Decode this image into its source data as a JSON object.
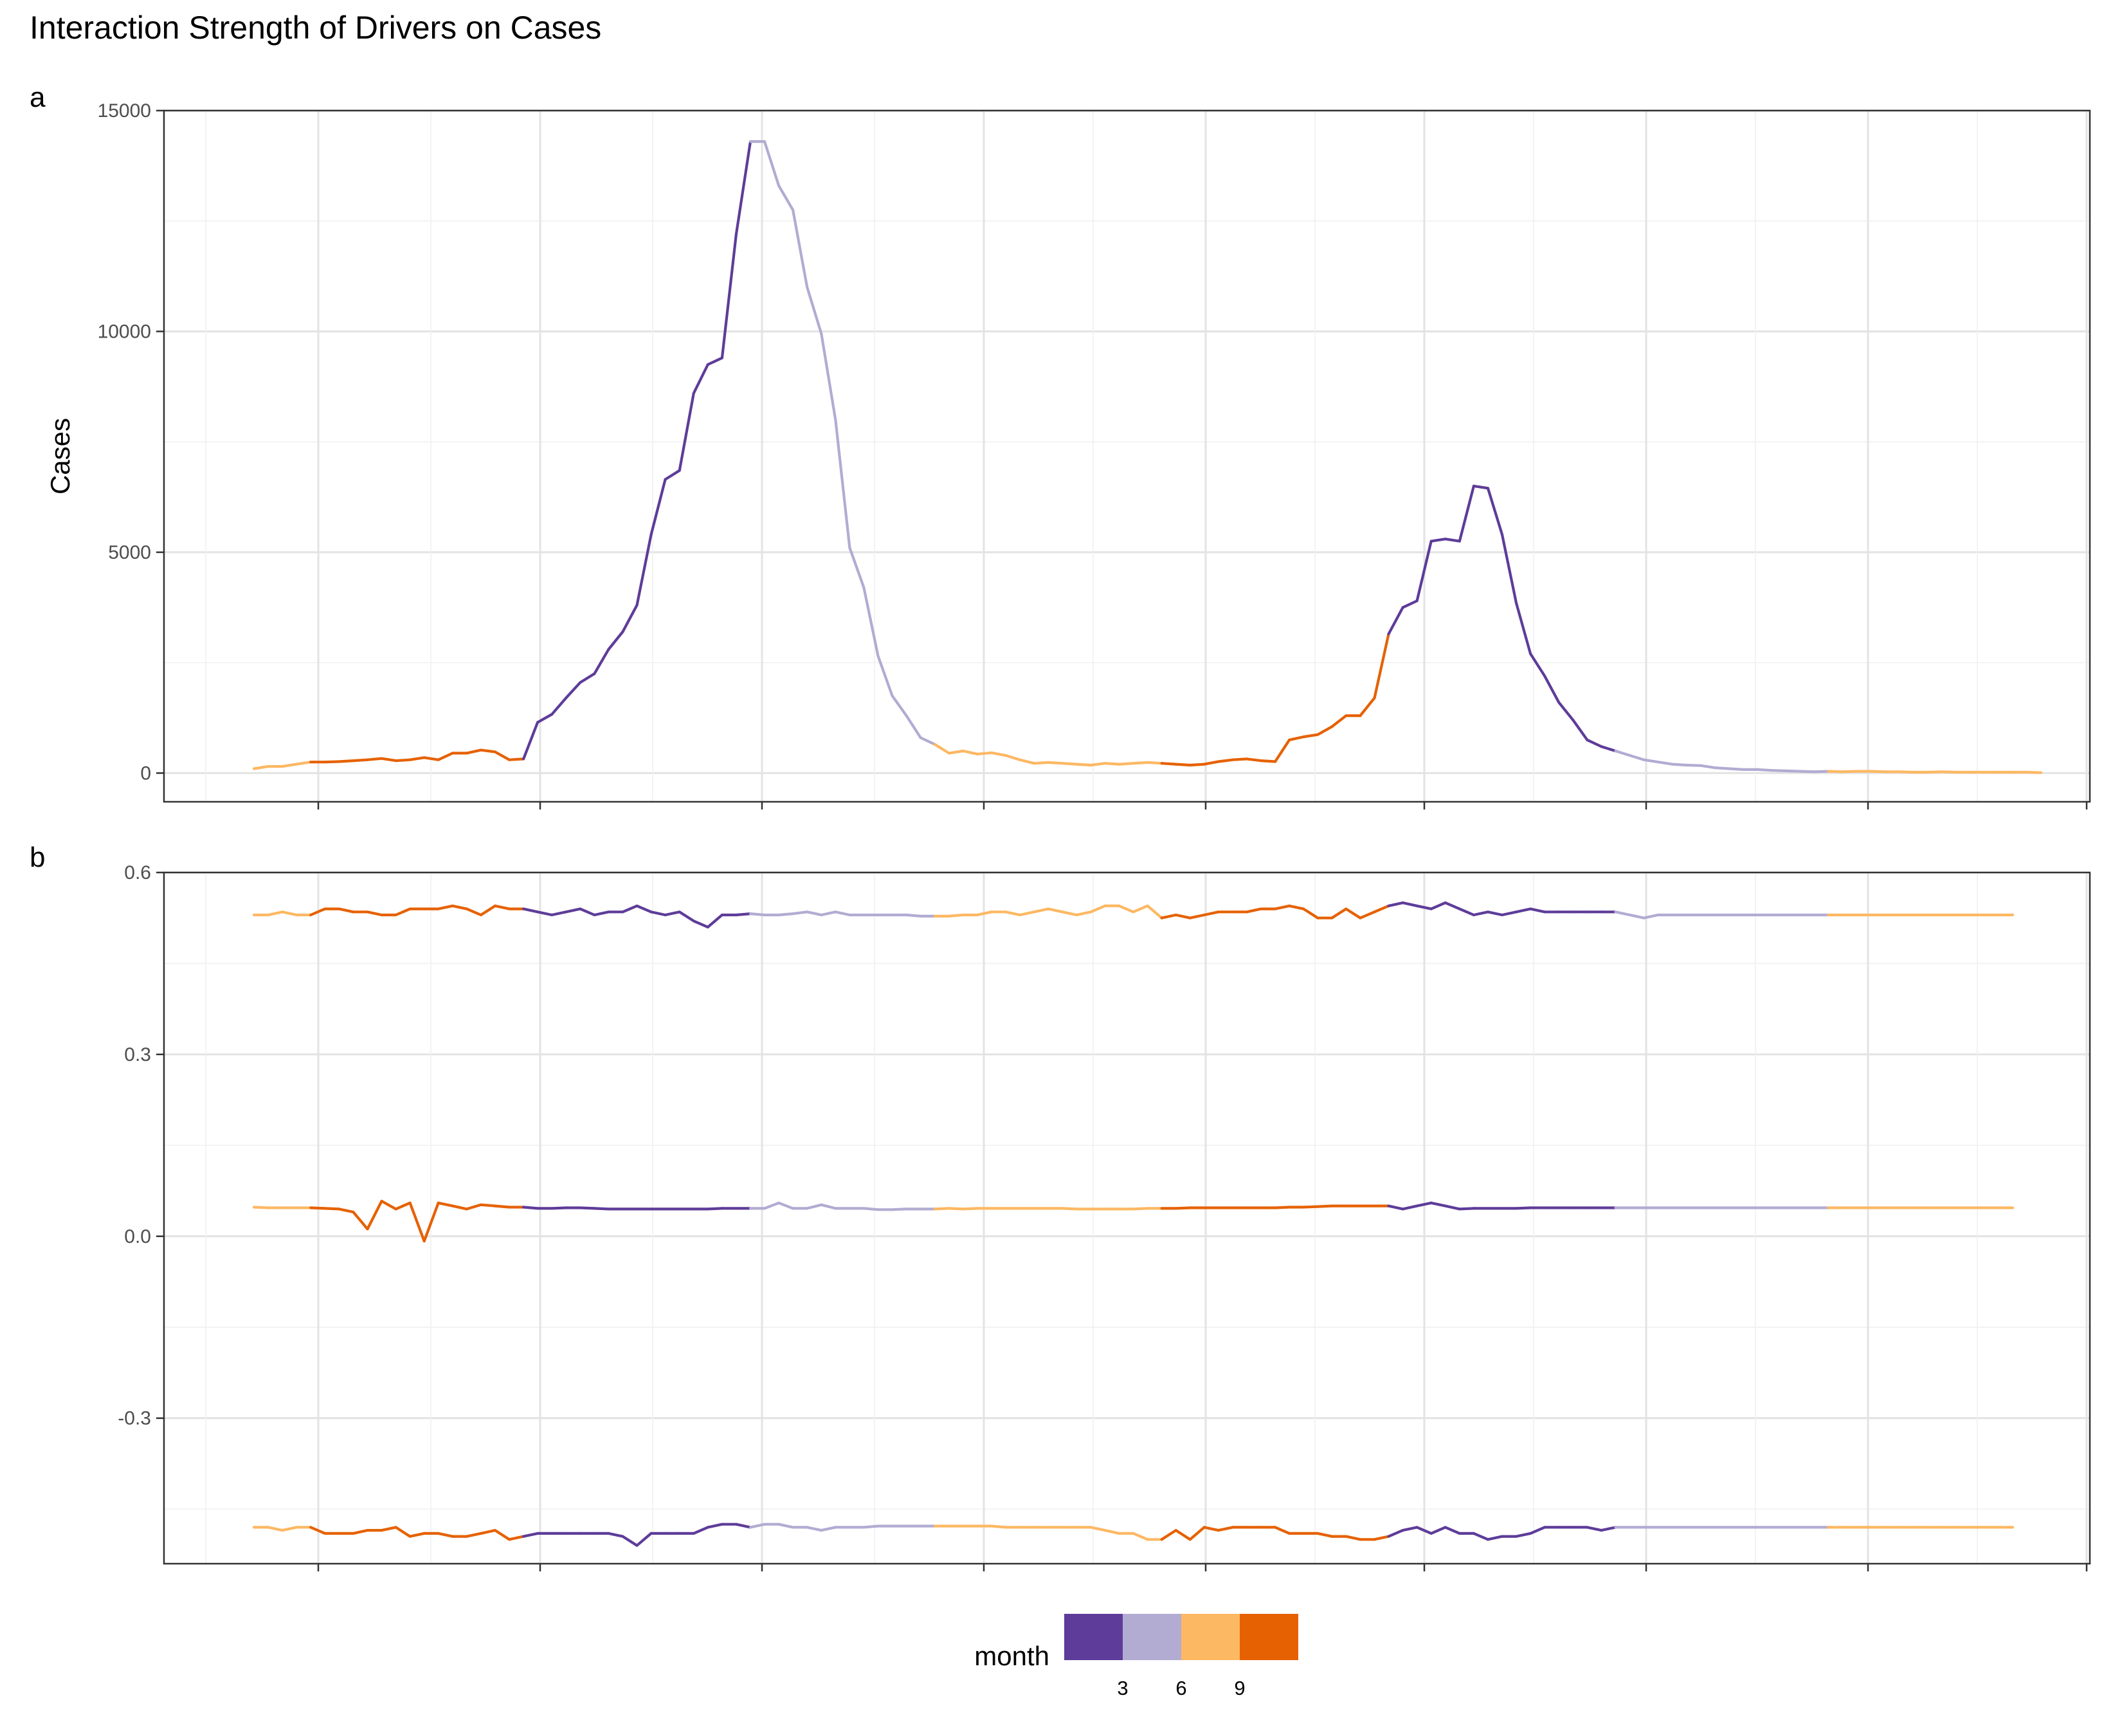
{
  "title": "Interaction Strength of Drivers on Cases",
  "colors": {
    "m3": "#5e3c99",
    "m6": "#b2abd2",
    "m9": "#fdb863",
    "m12": "#e66101"
  },
  "legend": {
    "title": "month",
    "ticks": [
      "3",
      "6",
      "9"
    ]
  },
  "chart_data": [
    {
      "type": "line",
      "panel_tag": "a",
      "xlabel": "",
      "ylabel": "Cases",
      "ylim": [
        -650,
        15000
      ],
      "yticks": [
        "0",
        "5000",
        "10000",
        "15000"
      ],
      "xticklabels": [],
      "grid": true,
      "x_index": "weekly observations 1–125",
      "series": [
        {
          "values": [
            100,
            150,
            150,
            200,
            250,
            250,
            260,
            280,
            300,
            330,
            280,
            300,
            350,
            300,
            450,
            450,
            520,
            480,
            300,
            320,
            1150,
            1330,
            1700,
            2050,
            2250,
            2800,
            3200,
            3800,
            5400,
            6650,
            6850,
            8600,
            9250,
            9400,
            12200,
            14300,
            14300,
            13300,
            12750,
            11000,
            9950,
            8000,
            5100,
            4200,
            2650,
            1750,
            1300,
            800,
            650,
            450,
            500,
            430,
            460,
            400,
            300,
            220,
            240,
            220,
            200,
            180,
            220,
            200,
            220,
            240,
            220,
            200,
            180,
            200,
            260,
            300,
            320,
            280,
            260,
            750,
            820,
            870,
            1050,
            1300,
            1300,
            1700,
            3150,
            3750,
            3900,
            5250,
            5300,
            5250,
            6500,
            6450,
            5400,
            3850,
            2700,
            2200,
            1600,
            1200,
            750,
            600,
            500,
            400,
            300,
            250,
            200,
            180,
            170,
            120,
            100,
            80,
            80,
            60,
            50,
            40,
            30,
            40,
            30,
            40,
            40,
            30,
            30,
            20,
            20,
            30,
            20,
            20,
            20,
            20,
            20,
            20,
            10
          ]
        }
      ],
      "month_code": "one color per observation, coded by calendar month"
    },
    {
      "type": "line",
      "panel_tag": "b",
      "xlabel": "",
      "ylabel": "",
      "ylim": [
        -0.54,
        0.6
      ],
      "yticks": [
        "-0.3",
        "0.0",
        "0.3",
        "0.6"
      ],
      "xticklabels": [],
      "grid": true,
      "series": [
        {
          "values": [
            0.53,
            0.53,
            0.535,
            0.53,
            0.53,
            0.54,
            0.54,
            0.535,
            0.535,
            0.53,
            0.53,
            0.54,
            0.54,
            0.54,
            0.545,
            0.54,
            0.53,
            0.545,
            0.54,
            0.54,
            0.535,
            0.53,
            0.535,
            0.54,
            0.53,
            0.535,
            0.535,
            0.545,
            0.535,
            0.53,
            0.535,
            0.52,
            0.51,
            0.53,
            0.53,
            0.532,
            0.53,
            0.53,
            0.532,
            0.535,
            0.53,
            0.535,
            0.53,
            0.53,
            0.53,
            0.53,
            0.53,
            0.528,
            0.528,
            0.528,
            0.53,
            0.53,
            0.535,
            0.535,
            0.53,
            0.535,
            0.54,
            0.535,
            0.53,
            0.535,
            0.545,
            0.545,
            0.535,
            0.545,
            0.525,
            0.53,
            0.525,
            0.53,
            0.535,
            0.535,
            0.535,
            0.54,
            0.54,
            0.545,
            0.54,
            0.525,
            0.525,
            0.54,
            0.525,
            0.535,
            0.545,
            0.55,
            0.545,
            0.54,
            0.55,
            0.54,
            0.53,
            0.535,
            0.53,
            0.535,
            0.54,
            0.535,
            0.535,
            0.535,
            0.535,
            0.535,
            0.535,
            0.53,
            0.525,
            0.53,
            0.53,
            0.53,
            0.53,
            0.53,
            0.53,
            0.53,
            0.53,
            0.53,
            0.53,
            0.53,
            0.53,
            0.53,
            0.53,
            0.53,
            0.53,
            0.53,
            0.53,
            0.53,
            0.53,
            0.53,
            0.53,
            0.53,
            0.53,
            0.53,
            0.53
          ]
        },
        {
          "values": [
            0.048,
            0.047,
            0.047,
            0.047,
            0.047,
            0.046,
            0.045,
            0.04,
            0.012,
            0.058,
            0.045,
            0.055,
            -0.008,
            0.055,
            0.05,
            0.045,
            0.052,
            0.05,
            0.048,
            0.048,
            0.046,
            0.046,
            0.047,
            0.047,
            0.046,
            0.045,
            0.045,
            0.045,
            0.045,
            0.045,
            0.045,
            0.045,
            0.045,
            0.046,
            0.046,
            0.046,
            0.046,
            0.055,
            0.046,
            0.046,
            0.052,
            0.046,
            0.046,
            0.046,
            0.044,
            0.044,
            0.045,
            0.045,
            0.045,
            0.046,
            0.045,
            0.046,
            0.046,
            0.046,
            0.046,
            0.046,
            0.046,
            0.046,
            0.045,
            0.045,
            0.045,
            0.045,
            0.045,
            0.046,
            0.046,
            0.046,
            0.047,
            0.047,
            0.047,
            0.047,
            0.047,
            0.047,
            0.047,
            0.048,
            0.048,
            0.049,
            0.05,
            0.05,
            0.05,
            0.05,
            0.05,
            0.045,
            0.05,
            0.055,
            0.05,
            0.045,
            0.046,
            0.046,
            0.046,
            0.046,
            0.047,
            0.047,
            0.047,
            0.047,
            0.047,
            0.047,
            0.047,
            0.047,
            0.047,
            0.047,
            0.047,
            0.047,
            0.047,
            0.047,
            0.047,
            0.047,
            0.047,
            0.047,
            0.047,
            0.047,
            0.047,
            0.047,
            0.047,
            0.047,
            0.047,
            0.047,
            0.047,
            0.047,
            0.047,
            0.047,
            0.047,
            0.047,
            0.047,
            0.047,
            0.047
          ]
        },
        {
          "values": [
            -0.48,
            -0.48,
            -0.485,
            -0.48,
            -0.48,
            -0.49,
            -0.49,
            -0.49,
            -0.485,
            -0.485,
            -0.48,
            -0.495,
            -0.49,
            -0.49,
            -0.495,
            -0.495,
            -0.49,
            -0.485,
            -0.5,
            -0.495,
            -0.49,
            -0.49,
            -0.49,
            -0.49,
            -0.49,
            -0.49,
            -0.495,
            -0.51,
            -0.49,
            -0.49,
            -0.49,
            -0.49,
            -0.48,
            -0.475,
            -0.475,
            -0.48,
            -0.475,
            -0.475,
            -0.48,
            -0.48,
            -0.485,
            -0.48,
            -0.48,
            -0.48,
            -0.478,
            -0.478,
            -0.478,
            -0.478,
            -0.478,
            -0.478,
            -0.478,
            -0.478,
            -0.478,
            -0.48,
            -0.48,
            -0.48,
            -0.48,
            -0.48,
            -0.48,
            -0.48,
            -0.485,
            -0.49,
            -0.49,
            -0.5,
            -0.5,
            -0.485,
            -0.5,
            -0.48,
            -0.485,
            -0.48,
            -0.48,
            -0.48,
            -0.48,
            -0.49,
            -0.49,
            -0.49,
            -0.495,
            -0.495,
            -0.5,
            -0.5,
            -0.495,
            -0.485,
            -0.48,
            -0.49,
            -0.48,
            -0.49,
            -0.49,
            -0.5,
            -0.495,
            -0.495,
            -0.49,
            -0.48,
            -0.48,
            -0.48,
            -0.48,
            -0.485,
            -0.48,
            -0.48,
            -0.48,
            -0.48,
            -0.48,
            -0.48,
            -0.48,
            -0.48,
            -0.48,
            -0.48,
            -0.48,
            -0.48,
            -0.48,
            -0.48,
            -0.48,
            -0.48,
            -0.48,
            -0.48,
            -0.48,
            -0.48,
            -0.48,
            -0.48,
            -0.48,
            -0.48,
            -0.48,
            -0.48,
            -0.48,
            -0.48,
            -0.48
          ]
        }
      ]
    }
  ]
}
